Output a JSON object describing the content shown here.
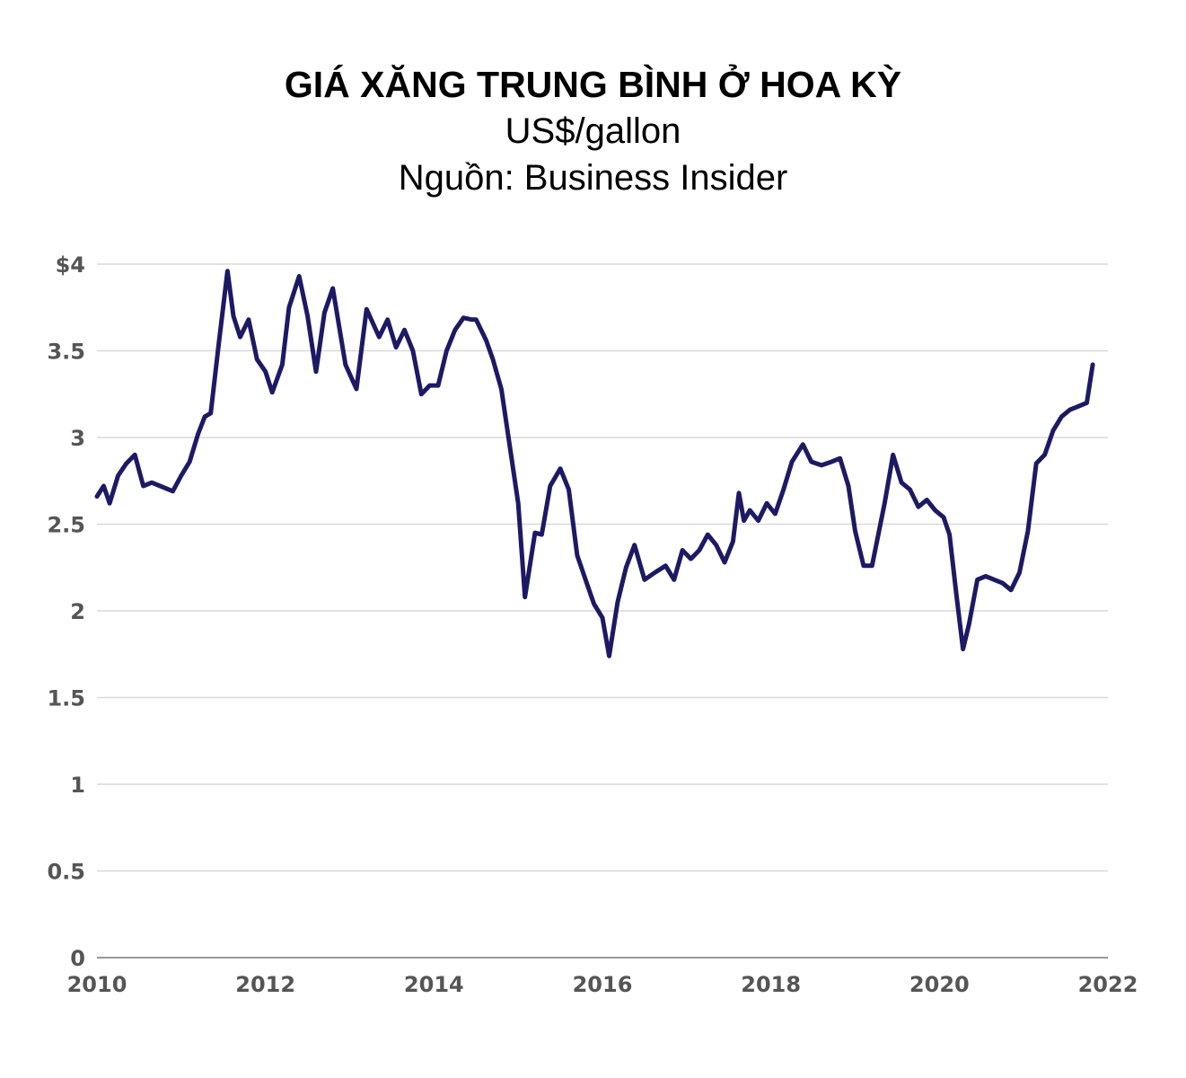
{
  "chart_data": {
    "type": "line",
    "title": "GIÁ XĂNG TRUNG BÌNH Ở HOA KỲ",
    "subtitle": "US$/gallon",
    "source": "Nguồn: Business Insider",
    "xlabel": "",
    "ylabel": "",
    "xlim": [
      2010,
      2022
    ],
    "ylim": [
      0,
      4
    ],
    "x_ticks": [
      "2010",
      "2012",
      "2014",
      "2016",
      "2018",
      "2020",
      "2022"
    ],
    "y_ticks": [
      "0",
      "0.5",
      "1",
      "1.5",
      "2",
      "2.5",
      "3",
      "3.5",
      "$4"
    ],
    "grid": true,
    "line_color": "#1c1a64",
    "series": [
      {
        "x": [
          2010.0,
          2010.08,
          2010.15,
          2010.25,
          2010.35,
          2010.45,
          2010.55,
          2010.65,
          2010.75,
          2010.9,
          2011.0,
          2011.1,
          2011.2,
          2011.28,
          2011.35,
          2011.45,
          2011.55,
          2011.62,
          2011.7,
          2011.8,
          2011.9,
          2012.0,
          2012.08,
          2012.2,
          2012.28,
          2012.4,
          2012.5,
          2012.6,
          2012.7,
          2012.8,
          2012.95,
          2013.08,
          2013.2,
          2013.35,
          2013.45,
          2013.55,
          2013.65,
          2013.75,
          2013.85,
          2013.95,
          2014.05,
          2014.15,
          2014.25,
          2014.35,
          2014.45,
          2014.5,
          2014.62,
          2014.7,
          2014.8,
          2014.9,
          2015.0,
          2015.08,
          2015.2,
          2015.28,
          2015.38,
          2015.5,
          2015.6,
          2015.7,
          2015.8,
          2015.9,
          2016.0,
          2016.08,
          2016.18,
          2016.28,
          2016.38,
          2016.5,
          2016.62,
          2016.75,
          2016.85,
          2016.95,
          2017.05,
          2017.15,
          2017.25,
          2017.35,
          2017.45,
          2017.55,
          2017.62,
          2017.68,
          2017.75,
          2017.85,
          2017.95,
          2018.05,
          2018.15,
          2018.25,
          2018.38,
          2018.48,
          2018.6,
          2018.72,
          2018.82,
          2018.92,
          2019.0,
          2019.1,
          2019.2,
          2019.35,
          2019.45,
          2019.55,
          2019.65,
          2019.75,
          2019.85,
          2019.95,
          2020.05,
          2020.12,
          2020.2,
          2020.28,
          2020.35,
          2020.45,
          2020.55,
          2020.65,
          2020.75,
          2020.85,
          2020.95,
          2021.05,
          2021.15,
          2021.25,
          2021.35,
          2021.45,
          2021.55,
          2021.65,
          2021.75,
          2021.82
        ],
        "y": [
          2.66,
          2.72,
          2.62,
          2.78,
          2.85,
          2.9,
          2.72,
          2.74,
          2.72,
          2.69,
          2.78,
          2.86,
          3.02,
          3.12,
          3.14,
          3.56,
          3.96,
          3.7,
          3.58,
          3.68,
          3.45,
          3.38,
          3.26,
          3.42,
          3.75,
          3.93,
          3.7,
          3.38,
          3.72,
          3.86,
          3.42,
          3.28,
          3.74,
          3.58,
          3.68,
          3.52,
          3.62,
          3.5,
          3.25,
          3.3,
          3.3,
          3.5,
          3.62,
          3.69,
          3.68,
          3.68,
          3.56,
          3.45,
          3.28,
          2.95,
          2.62,
          2.08,
          2.45,
          2.44,
          2.72,
          2.82,
          2.7,
          2.32,
          2.18,
          2.04,
          1.96,
          1.74,
          2.05,
          2.25,
          2.38,
          2.18,
          2.22,
          2.26,
          2.18,
          2.35,
          2.3,
          2.35,
          2.44,
          2.38,
          2.28,
          2.4,
          2.68,
          2.52,
          2.58,
          2.52,
          2.62,
          2.56,
          2.7,
          2.86,
          2.96,
          2.86,
          2.84,
          2.86,
          2.88,
          2.72,
          2.46,
          2.26,
          2.26,
          2.62,
          2.9,
          2.74,
          2.7,
          2.6,
          2.64,
          2.58,
          2.54,
          2.44,
          2.1,
          1.78,
          1.92,
          2.18,
          2.2,
          2.18,
          2.16,
          2.12,
          2.22,
          2.46,
          2.85,
          2.9,
          3.04,
          3.12,
          3.16,
          3.18,
          3.2,
          3.42
        ]
      }
    ]
  }
}
